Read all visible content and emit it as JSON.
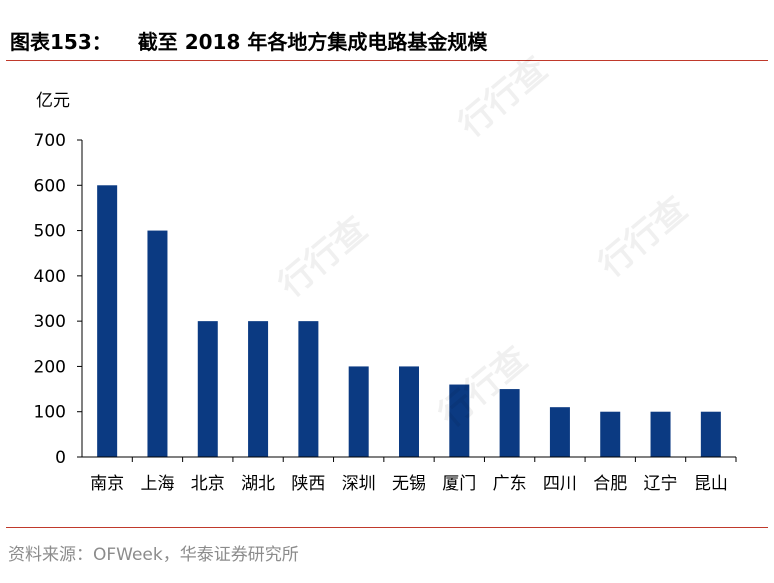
{
  "header": {
    "figure_no": "图表153：",
    "title": "截至 2018 年各地方集成电路基金规模"
  },
  "source": "资料来源：OFWeek，华泰证券研究所",
  "watermark": "行行查",
  "colors": {
    "bar": "#0b3a82",
    "rule": "#c0392b",
    "axis": "#000000"
  },
  "chart_data": {
    "type": "bar",
    "title": "截至 2018 年各地方集成电路基金规模",
    "ylabel": "亿元",
    "xlabel": "",
    "categories": [
      "南京",
      "上海",
      "北京",
      "湖北",
      "陕西",
      "深圳",
      "无锡",
      "厦门",
      "广东",
      "四川",
      "合肥",
      "辽宁",
      "昆山"
    ],
    "values": [
      600,
      500,
      300,
      300,
      300,
      200,
      200,
      160,
      150,
      110,
      100,
      100,
      100
    ],
    "ylim": [
      0,
      700
    ],
    "yticks": [
      0,
      100,
      200,
      300,
      400,
      500,
      600,
      700
    ],
    "grid": false,
    "legend": "none"
  }
}
